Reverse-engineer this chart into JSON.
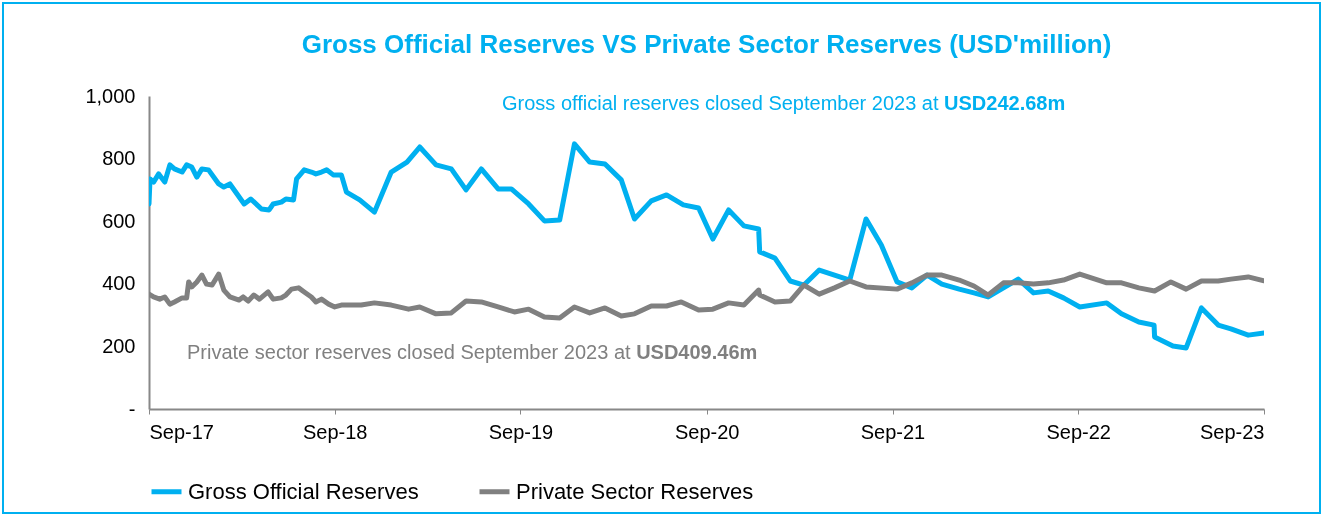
{
  "chart_data": {
    "type": "line",
    "title": "Gross Official Reserves VS Private Sector Reserves (USD'million)",
    "annotations": [
      "Gross official reserves closed September 2023 at USD242.68m",
      "Private sector reserves closed September 2023 at USD409.46m"
    ],
    "xlim": [
      "2017-09-01",
      "2023-09-01"
    ],
    "xticks": [
      {
        "value": "2017-09-01",
        "label": "Sep-17"
      },
      {
        "value": "2018-09-01",
        "label": "Sep-18"
      },
      {
        "value": "2019-09-01",
        "label": "Sep-19"
      },
      {
        "value": "2020-09-01",
        "label": "Sep-20"
      },
      {
        "value": "2021-09-01",
        "label": "Sep-21"
      },
      {
        "value": "2022-09-01",
        "label": "Sep-22"
      },
      {
        "value": "2023-09-01",
        "label": "Sep-23"
      }
    ],
    "ylim": [
      0,
      1000
    ],
    "yticks": [
      {
        "value": 0,
        "label": "-"
      },
      200,
      400,
      600,
      800,
      {
        "value": 1000,
        "label": "1,000"
      }
    ],
    "grid": false,
    "legend": "bottom",
    "line_style": "solid",
    "series": [
      {
        "name": "Gross Official Reserves",
        "color": "#00b0f0",
        "x": [
          "2017-09-01",
          "2017-09-03",
          "2017-09-10",
          "2017-09-20",
          "2017-10-02",
          "2017-10-12",
          "2017-10-21",
          "2017-11-05",
          "2017-11-14",
          "2017-11-24",
          "2017-12-04",
          "2017-12-14",
          "2017-12-27",
          "2018-01-16",
          "2018-01-26",
          "2018-02-07",
          "2018-02-21",
          "2018-03-07",
          "2018-03-20",
          "2018-04-10",
          "2018-04-25",
          "2018-05-03",
          "2018-05-19",
          "2018-05-28",
          "2018-06-12",
          "2018-06-18",
          "2018-07-03",
          "2018-07-17",
          "2018-07-26",
          "2018-08-06",
          "2018-08-16",
          "2018-08-29",
          "2018-09-14",
          "2018-09-24",
          "2018-10-20",
          "2018-11-18",
          "2018-12-21",
          "2019-01-21",
          "2019-02-15",
          "2019-03-19",
          "2019-04-18",
          "2019-05-17",
          "2019-06-16",
          "2019-07-19",
          "2019-08-14",
          "2019-09-17",
          "2019-10-18",
          "2019-11-17",
          "2019-12-16",
          "2020-01-15",
          "2020-02-14",
          "2020-03-17",
          "2020-04-12",
          "2020-05-15",
          "2020-06-14",
          "2020-07-17",
          "2020-08-16",
          "2020-09-13",
          "2020-10-14",
          "2020-11-13",
          "2020-12-12",
          "2020-12-14",
          "2021-01-13",
          "2021-02-12",
          "2021-03-11",
          "2021-04-10",
          "2021-05-10",
          "2021-06-09",
          "2021-07-11",
          "2021-08-10",
          "2021-09-10",
          "2021-10-09",
          "2021-11-08",
          "2021-12-07",
          "2022-01-10",
          "2022-02-08",
          "2022-03-08",
          "2022-04-07",
          "2022-05-06",
          "2022-06-05",
          "2022-07-04",
          "2022-08-03",
          "2022-09-04",
          "2022-10-27",
          "2022-11-25",
          "2022-12-29",
          "2023-01-28",
          "2023-01-29",
          "2023-03-06",
          "2023-04-01",
          "2023-05-01",
          "2023-06-03",
          "2023-06-28",
          "2023-08-01",
          "2023-09-01"
        ],
        "values": [
          655,
          735,
          725,
          751,
          725,
          780,
          767,
          757,
          780,
          773,
          741,
          767,
          764,
          719,
          709,
          719,
          687,
          655,
          671,
          639,
          636,
          655,
          661,
          671,
          668,
          735,
          764,
          757,
          751,
          757,
          764,
          748,
          748,
          693,
          668,
          629,
          757,
          789,
          837,
          780,
          767,
          700,
          767,
          703,
          703,
          655,
          601,
          604,
          847,
          789,
          783,
          732,
          607,
          665,
          684,
          652,
          642,
          543,
          636,
          585,
          575,
          502,
          482,
          409,
          396,
          444,
          428,
          412,
          607,
          524,
          406,
          387,
          428,
          399,
          383,
          371,
          358,
          387,
          415,
          371,
          377,
          355,
          326,
          339,
          304,
          278,
          268,
          230,
          201,
          195,
          323,
          268,
          256,
          236,
          242.68
        ]
      },
      {
        "name": "Private Sector Reserves",
        "color": "#808080",
        "x": [
          "2017-09-01",
          "2017-09-10",
          "2017-09-22",
          "2017-10-02",
          "2017-10-12",
          "2017-10-21",
          "2017-11-05",
          "2017-11-14",
          "2017-11-18",
          "2017-11-24",
          "2017-12-04",
          "2017-12-14",
          "2017-12-23",
          "2018-01-03",
          "2018-01-16",
          "2018-01-26",
          "2018-02-07",
          "2018-02-25",
          "2018-03-05",
          "2018-03-15",
          "2018-03-26",
          "2018-04-06",
          "2018-04-23",
          "2018-05-03",
          "2018-05-19",
          "2018-05-28",
          "2018-06-08",
          "2018-06-22",
          "2018-07-03",
          "2018-07-17",
          "2018-07-26",
          "2018-08-06",
          "2018-08-20",
          "2018-09-01",
          "2018-09-14",
          "2018-09-28",
          "2018-10-23",
          "2018-11-18",
          "2018-12-21",
          "2019-01-24",
          "2019-02-15",
          "2019-03-19",
          "2019-04-18",
          "2019-05-17",
          "2019-06-16",
          "2019-07-19",
          "2019-08-20",
          "2019-09-17",
          "2019-10-18",
          "2019-11-17",
          "2019-12-16",
          "2020-01-15",
          "2020-02-14",
          "2020-03-17",
          "2020-04-12",
          "2020-05-15",
          "2020-06-14",
          "2020-07-13",
          "2020-08-16",
          "2020-09-13",
          "2020-10-14",
          "2020-11-13",
          "2020-12-12",
          "2020-12-14",
          "2021-01-13",
          "2021-02-12",
          "2021-03-11",
          "2021-04-10",
          "2021-05-10",
          "2021-06-09",
          "2021-07-11",
          "2021-09-10",
          "2021-10-09",
          "2021-11-08",
          "2021-12-07",
          "2022-01-10",
          "2022-02-08",
          "2022-03-08",
          "2022-04-07",
          "2022-05-06",
          "2022-06-05",
          "2022-07-04",
          "2022-08-03",
          "2022-09-04",
          "2022-10-27",
          "2022-11-25",
          "2022-12-29",
          "2023-01-29",
          "2023-03-02",
          "2023-04-01",
          "2023-05-01",
          "2023-06-03",
          "2023-06-28",
          "2023-08-01",
          "2023-09-01"
        ],
        "values": [
          367,
          358,
          351,
          358,
          335,
          342,
          355,
          355,
          406,
          390,
          406,
          428,
          399,
          396,
          431,
          380,
          358,
          348,
          358,
          345,
          364,
          351,
          374,
          351,
          355,
          364,
          383,
          387,
          374,
          358,
          342,
          351,
          335,
          326,
          332,
          332,
          332,
          339,
          332,
          319,
          326,
          304,
          307,
          345,
          342,
          326,
          310,
          319,
          294,
          291,
          326,
          307,
          323,
          297,
          304,
          329,
          329,
          342,
          316,
          319,
          339,
          332,
          380,
          364,
          342,
          345,
          396,
          367,
          387,
          409,
          390,
          383,
          403,
          428,
          428,
          412,
          393,
          364,
          403,
          403,
          399,
          403,
          412,
          431,
          403,
          403,
          387,
          377,
          406,
          383,
          409,
          409,
          415,
          422,
          409.46
        ]
      }
    ]
  }
}
